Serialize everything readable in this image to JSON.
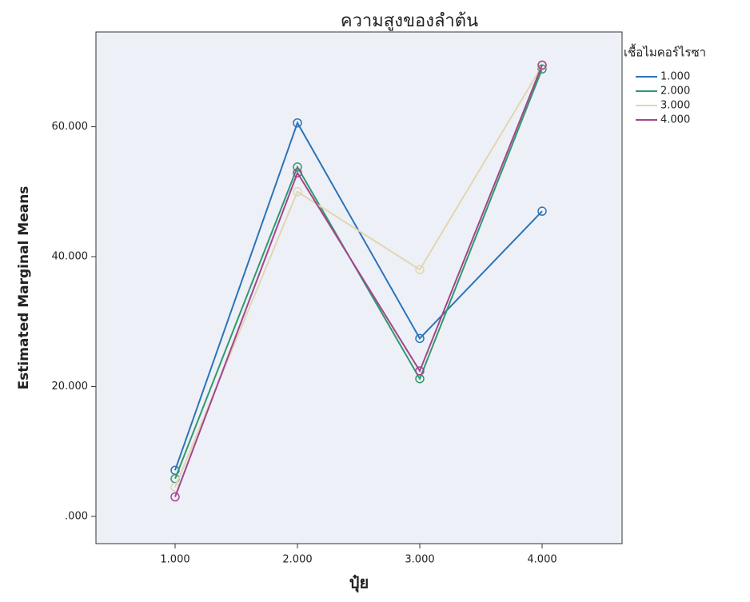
{
  "chart_data": {
    "type": "line",
    "title": "ความสูงของลำต้น",
    "x_label": "ปุ๋ย",
    "y_label": "Estimated Marginal Means",
    "legend_title": "เชื้อไมคอร์ไรซา",
    "categories": [
      "1.000",
      "2.000",
      "3.000",
      "4.000"
    ],
    "series": [
      {
        "name": "1.000",
        "color": "#2b74b8",
        "values": [
          7.1,
          60.6,
          27.4,
          47.0
        ]
      },
      {
        "name": "2.000",
        "color": "#2f9a6b",
        "values": [
          5.8,
          53.8,
          21.2,
          68.9
        ]
      },
      {
        "name": "3.000",
        "color": "#e2d6b0",
        "values": [
          4.5,
          50.0,
          38.0,
          69.4
        ]
      },
      {
        "name": "4.000",
        "color": "#a2468f",
        "values": [
          3.0,
          52.9,
          22.4,
          69.5
        ]
      }
    ],
    "ylim": [
      -4.2,
      74.6
    ],
    "yticks": [
      {
        "value": 0,
        "label": ".000"
      },
      {
        "value": 20,
        "label": "20.000"
      },
      {
        "value": 40,
        "label": "40.000"
      },
      {
        "value": 60,
        "label": "60.000"
      }
    ],
    "legend_position": "right"
  }
}
